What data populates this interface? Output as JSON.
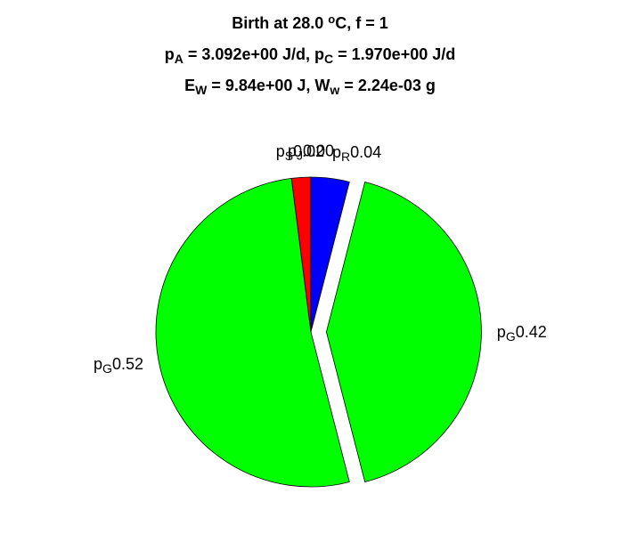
{
  "chart_data": {
    "type": "pie",
    "title": [
      [
        {
          "text": "Birth at 28.0 "
        },
        {
          "text": "o",
          "sup": true
        },
        {
          "text": "C, f = 1"
        }
      ],
      [
        {
          "text": "p"
        },
        {
          "text": "A",
          "sub": true
        },
        {
          "text": " = 3.092e+00 J/d, p"
        },
        {
          "text": "C",
          "sub": true
        },
        {
          "text": " = 1.970e+00 J/d"
        }
      ],
      [
        {
          "text": "E"
        },
        {
          "text": "W",
          "sub": true
        },
        {
          "text": " = 9.84e+00 J, W"
        },
        {
          "text": "w",
          "sub": true
        },
        {
          "text": " = 2.24e-03 g"
        }
      ]
    ],
    "slices": [
      {
        "name": "p",
        "sub": "S",
        "color": "#ff0000",
        "explode": false
      },
      {
        "name": "p",
        "sub": "G",
        "color": "#00ff00",
        "explode": false
      },
      {
        "name": "p",
        "sub": "G",
        "color": "#00ff00",
        "explode": true
      },
      {
        "name": "p",
        "sub": "R",
        "color": "#0000ff",
        "explode": false
      },
      {
        "name": "p",
        "sub": "J",
        "color": "#ffff00",
        "explode": false
      }
    ],
    "values": [
      0.02,
      0.52,
      0.42,
      0.04,
      0
    ],
    "value_labels": [
      "0.02",
      "0.52",
      "0.42",
      "0.04",
      "0.00"
    ]
  }
}
